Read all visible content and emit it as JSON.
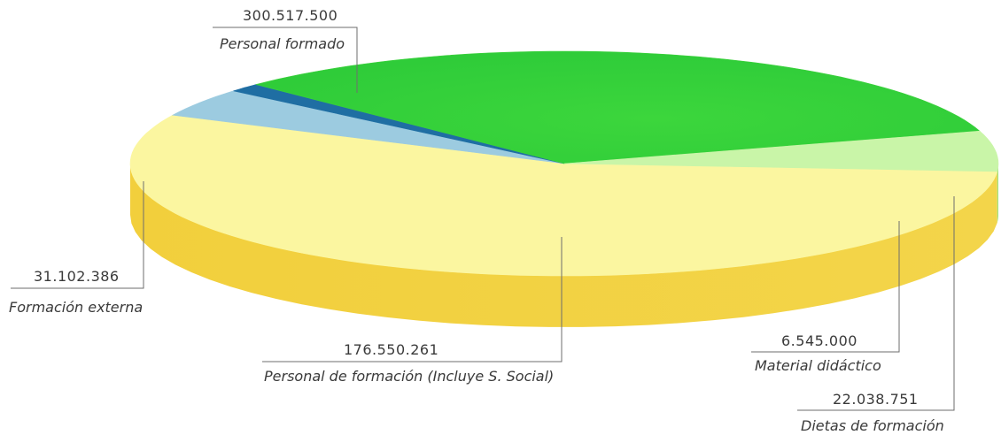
{
  "chart_data": {
    "type": "pie",
    "title": "",
    "slices": [
      {
        "key": "personal_formado",
        "label": "Personal formado",
        "value": 300517500,
        "value_text": "300.517.500",
        "color": "#fbf6a0"
      },
      {
        "key": "dietas",
        "label": "Dietas de formación",
        "value": 22038751,
        "value_text": "22.038.751",
        "color": "#9ccbe0"
      },
      {
        "key": "material",
        "label": "Material didáctico",
        "value": 6545000,
        "value_text": "6.545.000",
        "color": "#1f6ea3"
      },
      {
        "key": "personal_formacion",
        "label": "Personal de formación (Incluye S. Social)",
        "value": 176550261,
        "value_text": "176.550.261",
        "color": "#3ad13a"
      },
      {
        "key": "formacion_externa",
        "label": "Formación externa",
        "value": 31102386,
        "value_text": "31.102.386",
        "color": "#c9f5a8"
      }
    ],
    "style": "3d",
    "legend": "callout labels"
  }
}
